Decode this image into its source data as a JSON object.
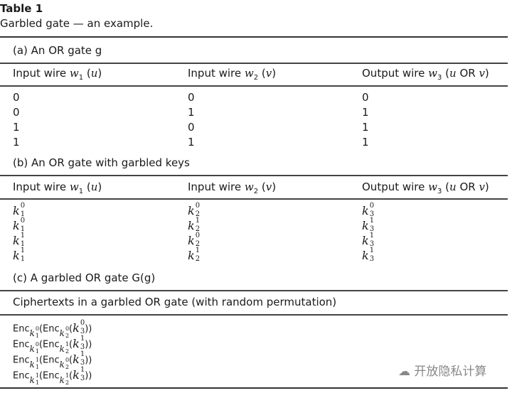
{
  "table_label": "Table 1",
  "caption": "Garbled gate — an example.",
  "section_a": {
    "label": "(a) An OR gate g",
    "headers": [
      "Input wire w1 (u)",
      "Input wire w2 (v)",
      "Output wire w3 (u OR v)"
    ],
    "rows": [
      [
        "0",
        "0",
        "0"
      ],
      [
        "0",
        "1",
        "1"
      ],
      [
        "1",
        "0",
        "1"
      ],
      [
        "1",
        "1",
        "1"
      ]
    ]
  },
  "section_b": {
    "label": "(b) An OR gate with garbled keys",
    "headers": [
      "Input wire w1 (u)",
      "Input wire w2 (v)",
      "Output wire w3 (u OR v)"
    ],
    "rows": [
      [
        "k_1^0",
        "k_2^0",
        "k_3^0"
      ],
      [
        "k_1^0",
        "k_2^1",
        "k_3^1"
      ],
      [
        "k_1^1",
        "k_2^0",
        "k_3^1"
      ],
      [
        "k_1^1",
        "k_2^1",
        "k_3^1"
      ]
    ]
  },
  "section_c": {
    "label": "(c) A garbled OR gate G(g)",
    "header": "Ciphertexts in a garbled OR gate (with random permutation)",
    "rows": [
      "Enc_{k_1^0}(Enc_{k_2^0}(k_3^0))",
      "Enc_{k_1^0}(Enc_{k_2^1}(k_3^1))",
      "Enc_{k_1^1}(Enc_{k_2^0}(k_3^1))",
      "Enc_{k_1^1}(Enc_{k_2^1}(k_3^1))"
    ]
  },
  "watermark": "开放隐私计算"
}
